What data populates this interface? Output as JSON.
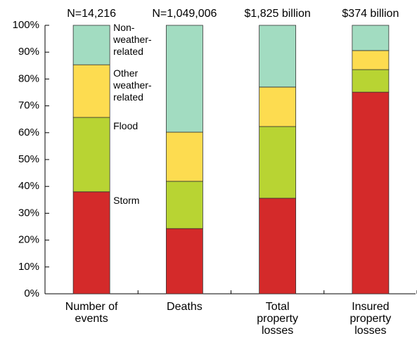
{
  "chart_data": {
    "type": "stacked_bar",
    "categories": [
      "Number of events",
      "Deaths",
      "Total property losses",
      "Insured property losses"
    ],
    "annotations": [
      "N=14,216",
      "N=1,049,006",
      "$1,825 billion",
      "$374 billion"
    ],
    "series": [
      {
        "name": "Storm",
        "color": "#d42a2a",
        "values": [
          38,
          24.3,
          35.6,
          75.1
        ]
      },
      {
        "name": "Flood",
        "color": "#b8d433",
        "values": [
          27.7,
          17.6,
          26.7,
          8.4
        ]
      },
      {
        "name": "Other weather-related",
        "color": "#fddc50",
        "values": [
          19.6,
          18.3,
          14.7,
          7.1
        ]
      },
      {
        "name": "Non-weather-related",
        "color": "#a2dcc1",
        "values": [
          14.7,
          39.8,
          23,
          9.4
        ]
      }
    ],
    "ylim": [
      0,
      100
    ],
    "yticks": [
      {
        "value": 0,
        "label": "0%"
      },
      {
        "value": 10,
        "label": "10%"
      },
      {
        "value": 20,
        "label": "20%"
      },
      {
        "value": 30,
        "label": "30%"
      },
      {
        "value": 40,
        "label": "40%"
      },
      {
        "value": 50,
        "label": "50%"
      },
      {
        "value": 60,
        "label": "60%"
      },
      {
        "value": 70,
        "label": "70%"
      },
      {
        "value": 80,
        "label": "80%"
      },
      {
        "value": 90,
        "label": "90%"
      },
      {
        "value": 100,
        "label": "100%"
      }
    ]
  }
}
